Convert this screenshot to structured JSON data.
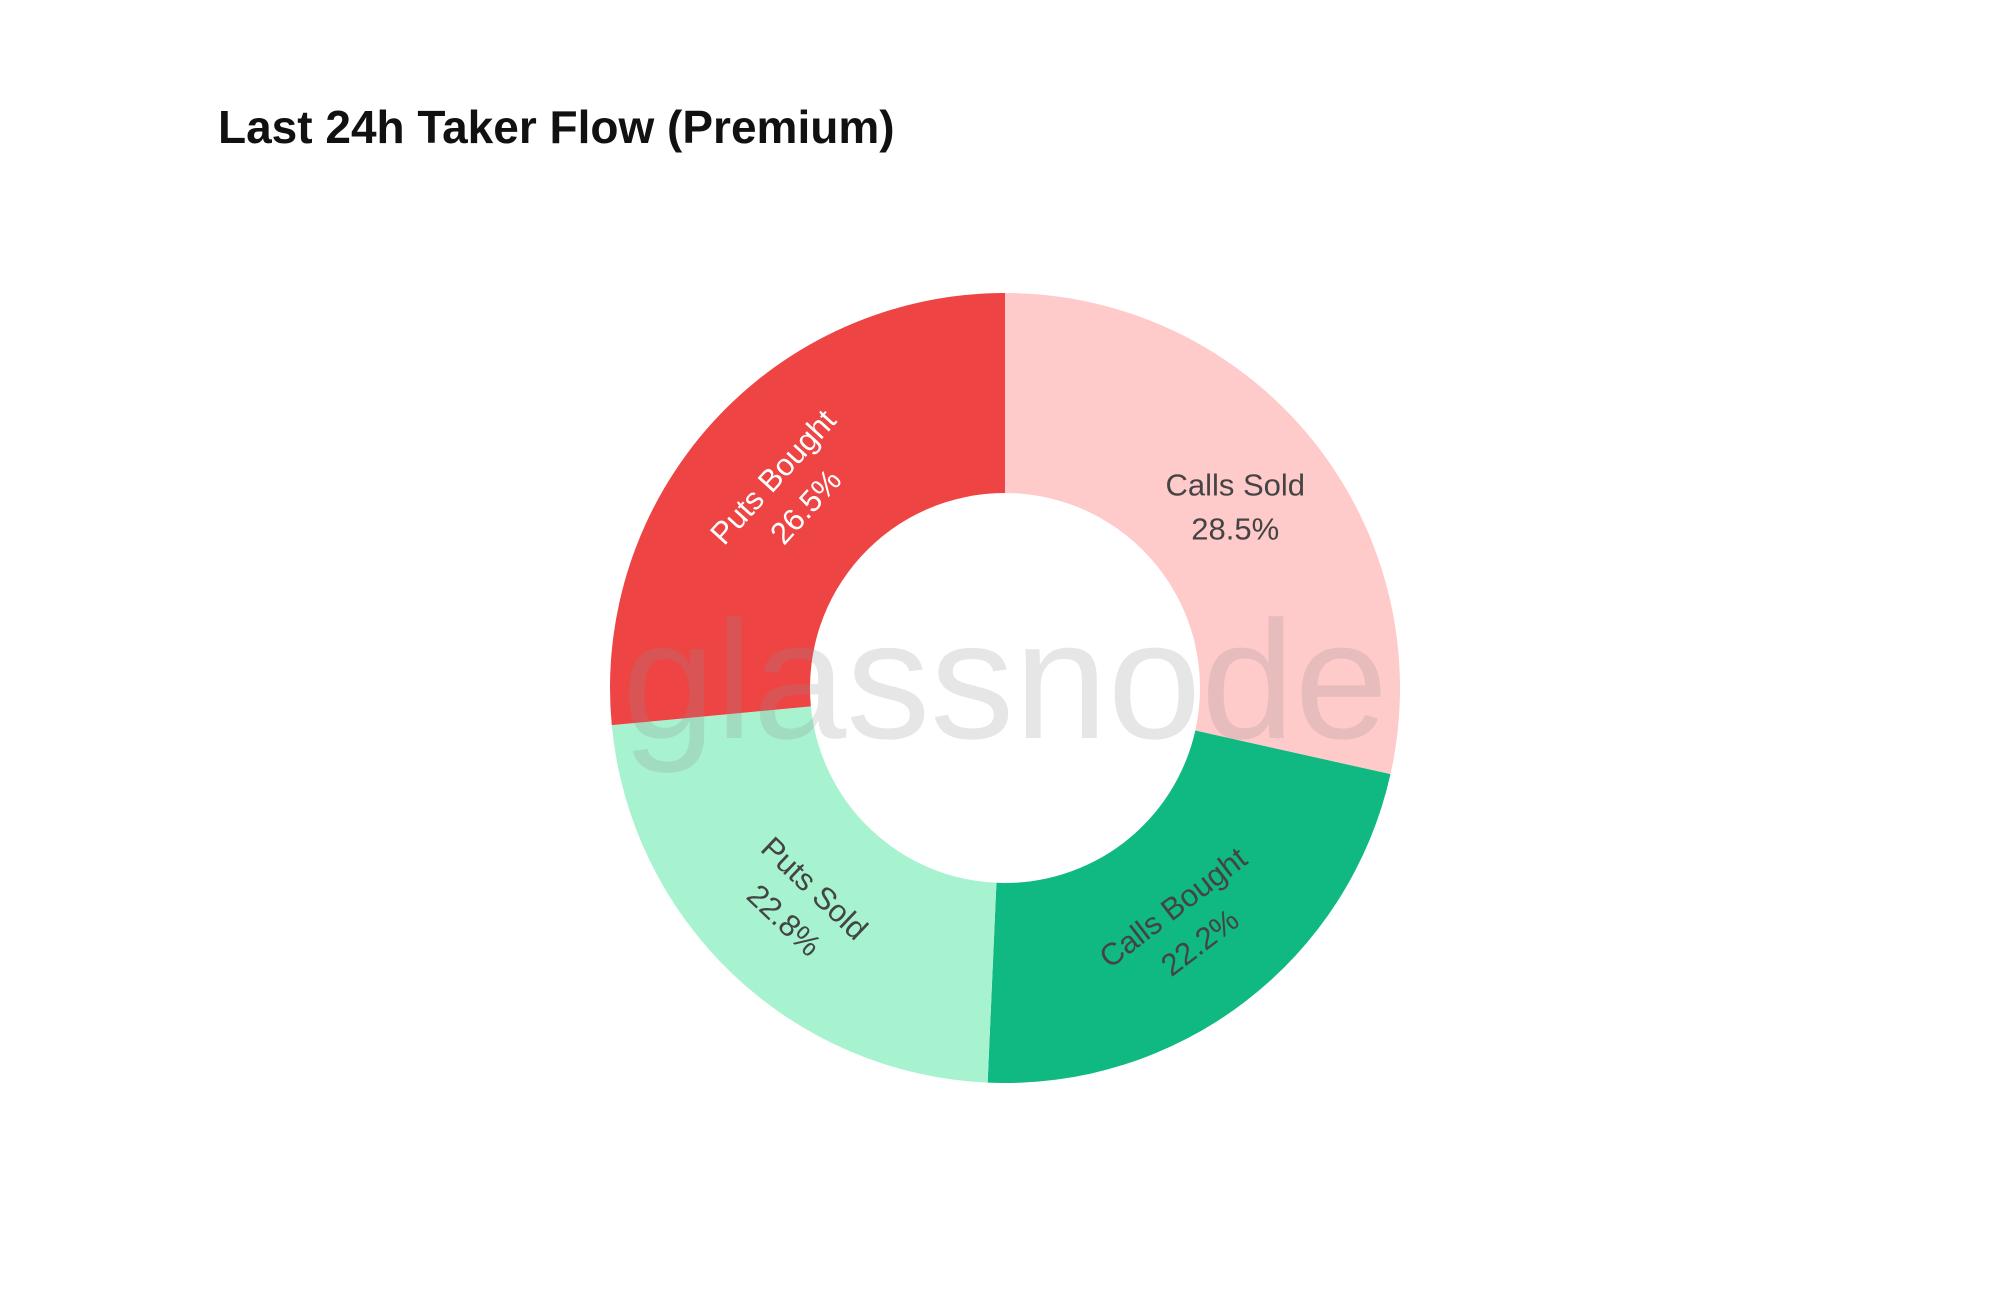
{
  "chart_data": {
    "type": "pie",
    "hole": true,
    "title": "Last 24h Taker Flow (Premium)",
    "watermark": "glassnode",
    "direction": "clockwise",
    "start": "top",
    "slices": [
      {
        "label": "Calls Sold",
        "value": 28.5,
        "text": "28.5%",
        "color": "#ffcaca",
        "text_color": "#444444"
      },
      {
        "label": "Calls Bought",
        "value": 22.2,
        "text": "22.2%",
        "color": "#10b981",
        "text_color": "#444444"
      },
      {
        "label": "Puts Sold",
        "value": 22.8,
        "text": "22.8%",
        "color": "#a7f3d0",
        "text_color": "#444444"
      },
      {
        "label": "Puts Bought",
        "value": 26.5,
        "text": "26.5%",
        "color": "#ef4444",
        "text_color": "#ffffff"
      }
    ]
  }
}
